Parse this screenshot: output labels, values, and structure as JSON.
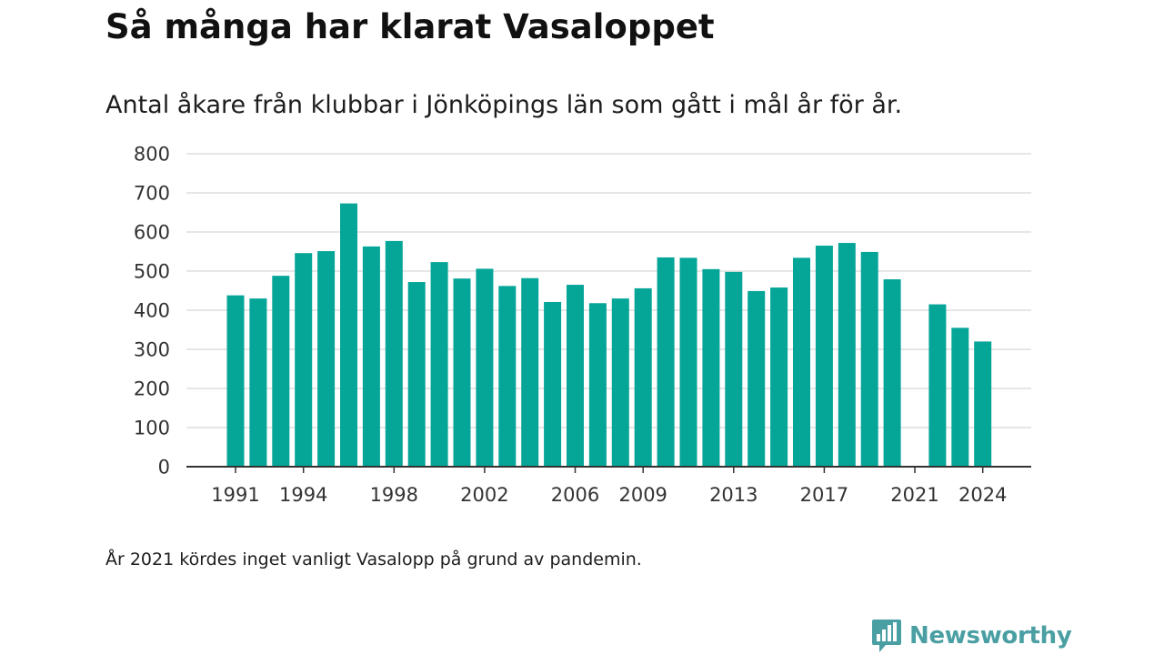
{
  "title": "Så många har klarat Vasaloppet",
  "subtitle": "Antal åkare från klubbar i Jönköpings län som gått i mål år för år.",
  "footnote": "År 2021 kördes inget vanligt Vasalopp på grund av pandemin.",
  "brand": {
    "name": "Newsworthy",
    "icon": "newsworthy-logo-icon",
    "color": "#4a9fa3"
  },
  "chart_data": {
    "type": "bar",
    "categories": [
      "1991",
      "1992",
      "1993",
      "1994",
      "1995",
      "1996",
      "1997",
      "1998",
      "1999",
      "2000",
      "2001",
      "2002",
      "2003",
      "2004",
      "2005",
      "2006",
      "2007",
      "2008",
      "2009",
      "2010",
      "2011",
      "2012",
      "2013",
      "2014",
      "2015",
      "2016",
      "2017",
      "2018",
      "2019",
      "2020",
      "2021",
      "2022",
      "2023",
      "2024"
    ],
    "values": [
      438,
      430,
      488,
      546,
      551,
      673,
      563,
      577,
      472,
      523,
      481,
      506,
      462,
      482,
      421,
      465,
      418,
      430,
      456,
      535,
      534,
      505,
      498,
      449,
      458,
      534,
      565,
      572,
      549,
      479,
      null,
      415,
      355,
      320
    ],
    "xticks": [
      "1991",
      "1994",
      "1998",
      "2002",
      "2006",
      "2009",
      "2013",
      "2017",
      "2021",
      "2024"
    ],
    "yticks": [
      0,
      100,
      200,
      300,
      400,
      500,
      600,
      700,
      800
    ],
    "ylim": [
      0,
      800
    ],
    "xlabel": "",
    "ylabel": "",
    "grid": true,
    "legend": "none",
    "bar_color": "#05a598",
    "grid_color": "#dddddd",
    "axis_color": "#333333"
  }
}
